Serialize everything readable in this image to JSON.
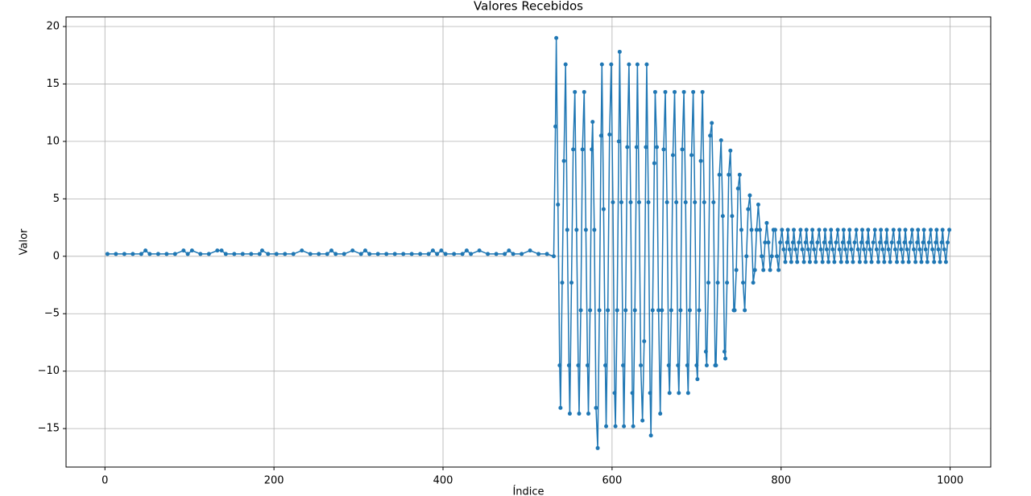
{
  "chart_data": {
    "type": "line",
    "title": "Valores Recebidos",
    "x_label": "Índice",
    "y_label": "Valor",
    "color": "#1f77b4",
    "grid": true,
    "markers": true,
    "xlim": [
      -46,
      1048
    ],
    "ylim": [
      -18.35,
      20.84
    ],
    "xticks": [
      0,
      200,
      400,
      600,
      800,
      1000
    ],
    "yticks": [
      {
        "value": -15,
        "label": "−15"
      },
      {
        "value": -10,
        "label": "−10"
      },
      {
        "value": -5,
        "label": "−5"
      },
      0,
      5,
      10,
      15,
      20
    ],
    "x": [
      3,
      13,
      23,
      33,
      43,
      48,
      53,
      63,
      73,
      83,
      93,
      98,
      103,
      113,
      123,
      133,
      138,
      143,
      153,
      163,
      173,
      183,
      186,
      193,
      203,
      213,
      223,
      233,
      243,
      253,
      263,
      268,
      273,
      283,
      293,
      303,
      308,
      313,
      323,
      333,
      343,
      353,
      363,
      373,
      383,
      388,
      393,
      398,
      403,
      413,
      423,
      428,
      433,
      443,
      453,
      463,
      473,
      478,
      483,
      493,
      503,
      513,
      523,
      531,
      533,
      534,
      536,
      538,
      539,
      541,
      543,
      545,
      547,
      549,
      550,
      552,
      554,
      556,
      558,
      560,
      561,
      563,
      565,
      567,
      569,
      571,
      572,
      574,
      576,
      577,
      579,
      581,
      583,
      585,
      587,
      588,
      590,
      592,
      593,
      595,
      597,
      599,
      601,
      603,
      604,
      606,
      608,
      609,
      611,
      613,
      614,
      616,
      618,
      620,
      622,
      624,
      625,
      627,
      629,
      630,
      632,
      634,
      636,
      638,
      640,
      641,
      643,
      645,
      646,
      648,
      650,
      651,
      653,
      655,
      657,
      659,
      661,
      663,
      665,
      667,
      668,
      670,
      672,
      674,
      676,
      678,
      679,
      681,
      683,
      685,
      687,
      689,
      690,
      692,
      694,
      696,
      698,
      700,
      701,
      703,
      705,
      707,
      709,
      711,
      712,
      714,
      716,
      718,
      720,
      722,
      723,
      725,
      727,
      729,
      731,
      733,
      734,
      736,
      738,
      740,
      742,
      744,
      745,
      747,
      749,
      751,
      753,
      755,
      757,
      759,
      761,
      763,
      765,
      767,
      769,
      771,
      773,
      775,
      777,
      779,
      781,
      783,
      785,
      787,
      789,
      791,
      793,
      795,
      797,
      799,
      801,
      803,
      805,
      807,
      808,
      810,
      812,
      814,
      815,
      817,
      819,
      821,
      823,
      825,
      827,
      829,
      830,
      832,
      834,
      836,
      837,
      839,
      841,
      843,
      845,
      847,
      849,
      851,
      852,
      854,
      856,
      858,
      859,
      861,
      863,
      865,
      867,
      869,
      871,
      873,
      874,
      876,
      878,
      880,
      881,
      883,
      885,
      887,
      889,
      891,
      893,
      895,
      896,
      898,
      900,
      902,
      903,
      905,
      907,
      909,
      911,
      913,
      915,
      917,
      918,
      920,
      922,
      924,
      925,
      927,
      929,
      931,
      933,
      935,
      937,
      939,
      940,
      942,
      944,
      946,
      947,
      949,
      951,
      953,
      955,
      957,
      959,
      961,
      962,
      964,
      966,
      968,
      969,
      971,
      973,
      975,
      977,
      979,
      981,
      983,
      984,
      986,
      988,
      990,
      991,
      993,
      995,
      997,
      999
    ],
    "values": [
      0.2,
      0.2,
      0.2,
      0.2,
      0.2,
      0.5,
      0.2,
      0.2,
      0.2,
      0.2,
      0.5,
      0.2,
      0.5,
      0.2,
      0.2,
      0.5,
      0.5,
      0.2,
      0.2,
      0.2,
      0.2,
      0.2,
      0.5,
      0.2,
      0.2,
      0.2,
      0.2,
      0.5,
      0.2,
      0.2,
      0.2,
      0.5,
      0.2,
      0.2,
      0.5,
      0.2,
      0.5,
      0.2,
      0.2,
      0.2,
      0.2,
      0.2,
      0.2,
      0.2,
      0.2,
      0.5,
      0.2,
      0.5,
      0.2,
      0.2,
      0.2,
      0.5,
      0.2,
      0.5,
      0.2,
      0.2,
      0.2,
      0.5,
      0.2,
      0.2,
      0.5,
      0.2,
      0.2,
      0.0,
      11.3,
      19,
      4.5,
      -9.5,
      -13.2,
      -2.3,
      8.3,
      16.7,
      2.3,
      -9.5,
      -13.7,
      -2.3,
      9.3,
      14.3,
      2.3,
      -9.5,
      -13.7,
      -4.7,
      9.3,
      14.3,
      2.3,
      -9.5,
      -13.7,
      -4.7,
      9.3,
      11.7,
      2.3,
      -13.2,
      -16.7,
      -4.7,
      10.5,
      16.7,
      4.1,
      -9.5,
      -14.8,
      -4.7,
      10.6,
      16.7,
      4.7,
      -11.9,
      -14.8,
      -4.7,
      10,
      17.8,
      4.7,
      -9.5,
      -14.8,
      -4.7,
      9.5,
      16.7,
      4.7,
      -11.9,
      -14.8,
      -4.7,
      9.5,
      16.7,
      4.7,
      -9.5,
      -14.3,
      -7.4,
      9.5,
      16.7,
      4.7,
      -11.9,
      -15.6,
      -4.7,
      8.1,
      14.3,
      9.5,
      -4.7,
      -13.7,
      -4.7,
      9.3,
      14.3,
      4.7,
      -9.5,
      -11.9,
      -4.7,
      8.8,
      14.3,
      4.7,
      -9.5,
      -11.9,
      -4.7,
      9.3,
      14.3,
      4.7,
      -9.5,
      -11.9,
      -4.7,
      8.8,
      14.3,
      4.7,
      -9.5,
      -10.7,
      -4.7,
      8.3,
      14.3,
      4.7,
      -8.3,
      -9.5,
      -2.3,
      10.5,
      11.6,
      4.7,
      -9.5,
      -9.5,
      -2.3,
      7.1,
      10.1,
      3.5,
      -8.3,
      -8.9,
      -2.3,
      7.1,
      9.2,
      3.5,
      -4.7,
      -4.7,
      -1.2,
      5.9,
      7.1,
      2.3,
      -2.3,
      -4.7,
      0,
      4.1,
      5.3,
      2.3,
      -2.3,
      -1.2,
      2.3,
      4.5,
      2.3,
      0,
      -1.2,
      1.2,
      2.9,
      1.2,
      -1.2,
      0,
      2.3,
      2.3,
      0,
      -1.2,
      1.2,
      2.3,
      0.6,
      -0.5,
      1.2,
      2.3,
      0.6,
      -0.5,
      1.2,
      2.3,
      0.6,
      -0.5,
      1.2,
      2.3,
      0.6,
      -0.5,
      1.2,
      2.3,
      0.6,
      -0.5,
      1.2,
      2.3,
      0.6,
      -0.5,
      1.2,
      2.3,
      0.6,
      -0.5,
      1.2,
      2.3,
      0.6,
      -0.5,
      1.2,
      2.3,
      0.6,
      -0.5,
      1.2,
      2.3,
      0.6,
      -0.5,
      1.2,
      2.3,
      0.6,
      -0.5,
      1.2,
      2.3,
      0.6,
      -0.5,
      1.2,
      2.3,
      0.6,
      -0.5,
      1.2,
      2.3,
      0.6,
      -0.5,
      1.2,
      2.3,
      0.6,
      -0.5,
      1.2,
      2.3,
      0.6,
      -0.5,
      1.2,
      2.3,
      0.6,
      -0.5,
      1.2,
      2.3,
      0.6,
      -0.5,
      1.2,
      2.3,
      0.6,
      -0.5,
      1.2,
      2.3,
      0.6,
      -0.5,
      1.2,
      2.3,
      0.6,
      -0.5,
      1.2,
      2.3,
      0.6,
      -0.5,
      1.2,
      2.3,
      0.6,
      -0.5,
      1.2,
      2.3,
      0.6,
      -0.5,
      1.2,
      2.3,
      0.6,
      -0.5,
      1.2,
      2.3,
      0.6,
      -0.5,
      1.2,
      2.3,
      0.6,
      -0.5,
      1.2,
      2.3
    ]
  }
}
